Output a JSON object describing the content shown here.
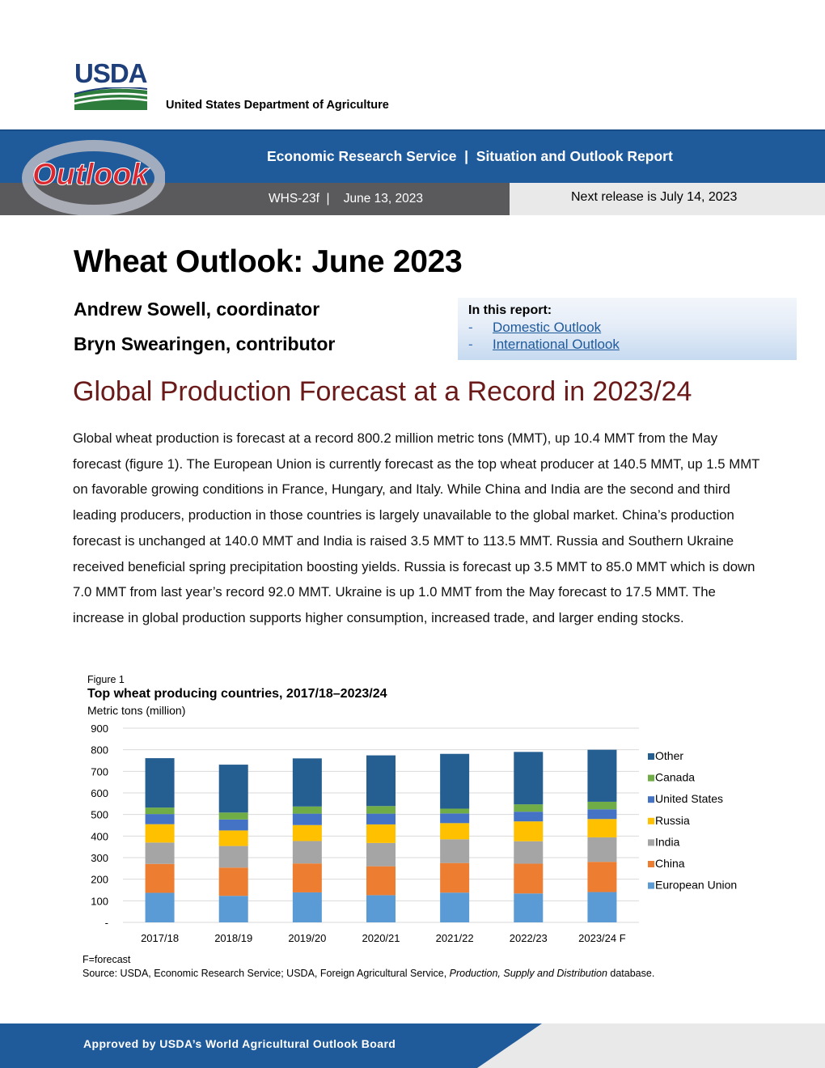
{
  "header": {
    "logo_text": "USDA",
    "agency": "United States Department of Agriculture",
    "outlook_logo_text": "Outlook",
    "service_line": "Economic Research Service  |  Situation and Outlook Report",
    "release_info": "WHS-23f  |    June 13, 2023",
    "next_release": "Next release is July 14, 2023"
  },
  "report": {
    "title": "Wheat Outlook: June 2023",
    "authors": [
      "Andrew Sowell, coordinator",
      "Bryn Swearingen, contributor"
    ]
  },
  "toc": {
    "heading": "In this report:",
    "items": [
      {
        "dash": "-",
        "label": "Domestic Outlook"
      },
      {
        "dash": "-",
        "label": "International Outlook"
      }
    ]
  },
  "section": {
    "heading": "Global Production Forecast at a Record in 2023/24",
    "paragraph": "Global wheat production is forecast at a record 800.2 million metric tons (MMT), up 10.4 MMT from the May forecast (figure 1). The European Union is currently forecast as the top wheat producer at 140.5 MMT, up 1.5 MMT on favorable growing conditions in France, Hungary, and Italy. While China and India are the second and third leading producers, production in those countries is largely unavailable to the global market. China’s production forecast is unchanged at 140.0 MMT and India is raised 3.5 MMT to 113.5 MMT. Russia and Southern Ukraine received beneficial spring precipitation boosting yields. Russia is forecast up 3.5 MMT to 85.0 MMT which is down 7.0 MMT from last year’s record 92.0 MMT. Ukraine is up 1.0 MMT from the May forecast to 17.5 MMT. The increase in global production supports higher consumption, increased trade, and larger ending stocks."
  },
  "figure": {
    "label": "Figure 1",
    "note": "F=forecast",
    "source_prefix": "Source: USDA, Economic Research Service; USDA, Foreign Agricultural Service, ",
    "source_italic": "Production, Supply and Distribution",
    "source_suffix": " database."
  },
  "chart_data": {
    "type": "bar",
    "stacked": true,
    "title": "Top wheat producing countries, 2017/18–2023/24",
    "ylabel": "Metric tons (million)",
    "xlabel": "",
    "ylim": [
      0,
      900
    ],
    "yticks": [
      "-",
      "100",
      "200",
      "300",
      "400",
      "500",
      "600",
      "700",
      "800",
      "900"
    ],
    "grid": true,
    "legend_position": "right",
    "categories": [
      "2017/18",
      "2018/19",
      "2019/20",
      "2020/21",
      "2021/22",
      "2022/23",
      "2023/24 F"
    ],
    "series": [
      {
        "name": "European Union",
        "color": "#5b9bd5",
        "values": [
          137,
          123,
          139,
          126,
          138,
          134,
          140.5
        ]
      },
      {
        "name": "China",
        "color": "#ed7d31",
        "values": [
          134,
          131,
          134,
          134,
          137,
          138,
          140
        ]
      },
      {
        "name": "India",
        "color": "#a5a5a5",
        "values": [
          99,
          100,
          104,
          108,
          110,
          104,
          113.5
        ]
      },
      {
        "name": "Russia",
        "color": "#ffc000",
        "values": [
          85,
          72,
          74,
          86,
          75,
          92,
          85
        ]
      },
      {
        "name": "United States",
        "color": "#4472c4",
        "values": [
          47,
          51,
          53,
          50,
          45,
          45,
          45
        ]
      },
      {
        "name": "Canada",
        "color": "#70ad47",
        "values": [
          30,
          32,
          33,
          35,
          22,
          34,
          35
        ]
      },
      {
        "name": "Other",
        "color": "#255e91",
        "values": [
          229,
          222,
          223,
          235,
          254,
          243,
          241
        ]
      }
    ]
  },
  "footer": {
    "text": "Approved by USDA’s World Agricultural Outlook Board"
  },
  "colors": {
    "banner_blue": "#1f5a9a",
    "banner_gray": "#5a5a5c",
    "heading_maroon": "#6b1a1a",
    "link_blue": "#1f5a9a"
  }
}
